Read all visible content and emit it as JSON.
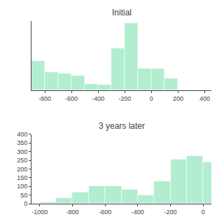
{
  "chart_data": [
    {
      "type": "histogram",
      "title": "Initial",
      "bins": [
        -900,
        -800,
        -700,
        -600,
        -500,
        -400,
        -300,
        -200,
        -100,
        0,
        100,
        200,
        300,
        400
      ],
      "values": [
        185,
        115,
        105,
        90,
        40,
        35,
        260,
        415,
        135,
        135,
        75,
        0,
        0
      ],
      "color": "#b2edd0",
      "xlim": [
        -900,
        450
      ],
      "ylim": [
        0,
        430
      ],
      "xticks": [
        -800,
        -600,
        -400,
        -200,
        0,
        200,
        400
      ],
      "tick_labels": "x",
      "grid": false
    },
    {
      "type": "histogram",
      "title": "3 years later",
      "bins": [
        -1000,
        -900,
        -800,
        -700,
        -600,
        -500,
        -400,
        -300,
        -200,
        -100,
        0,
        100
      ],
      "values": [
        10,
        35,
        65,
        100,
        100,
        80,
        50,
        130,
        255,
        275,
        240
      ],
      "color": "#b2edd0",
      "xlim": [
        -1050,
        50
      ],
      "ylim": [
        0,
        400
      ],
      "xticks": [
        -1000,
        -800,
        -600,
        -400,
        -200,
        0
      ],
      "yticks": [
        0,
        50,
        100,
        150,
        200,
        250,
        300,
        350,
        400
      ],
      "grid": false
    }
  ]
}
